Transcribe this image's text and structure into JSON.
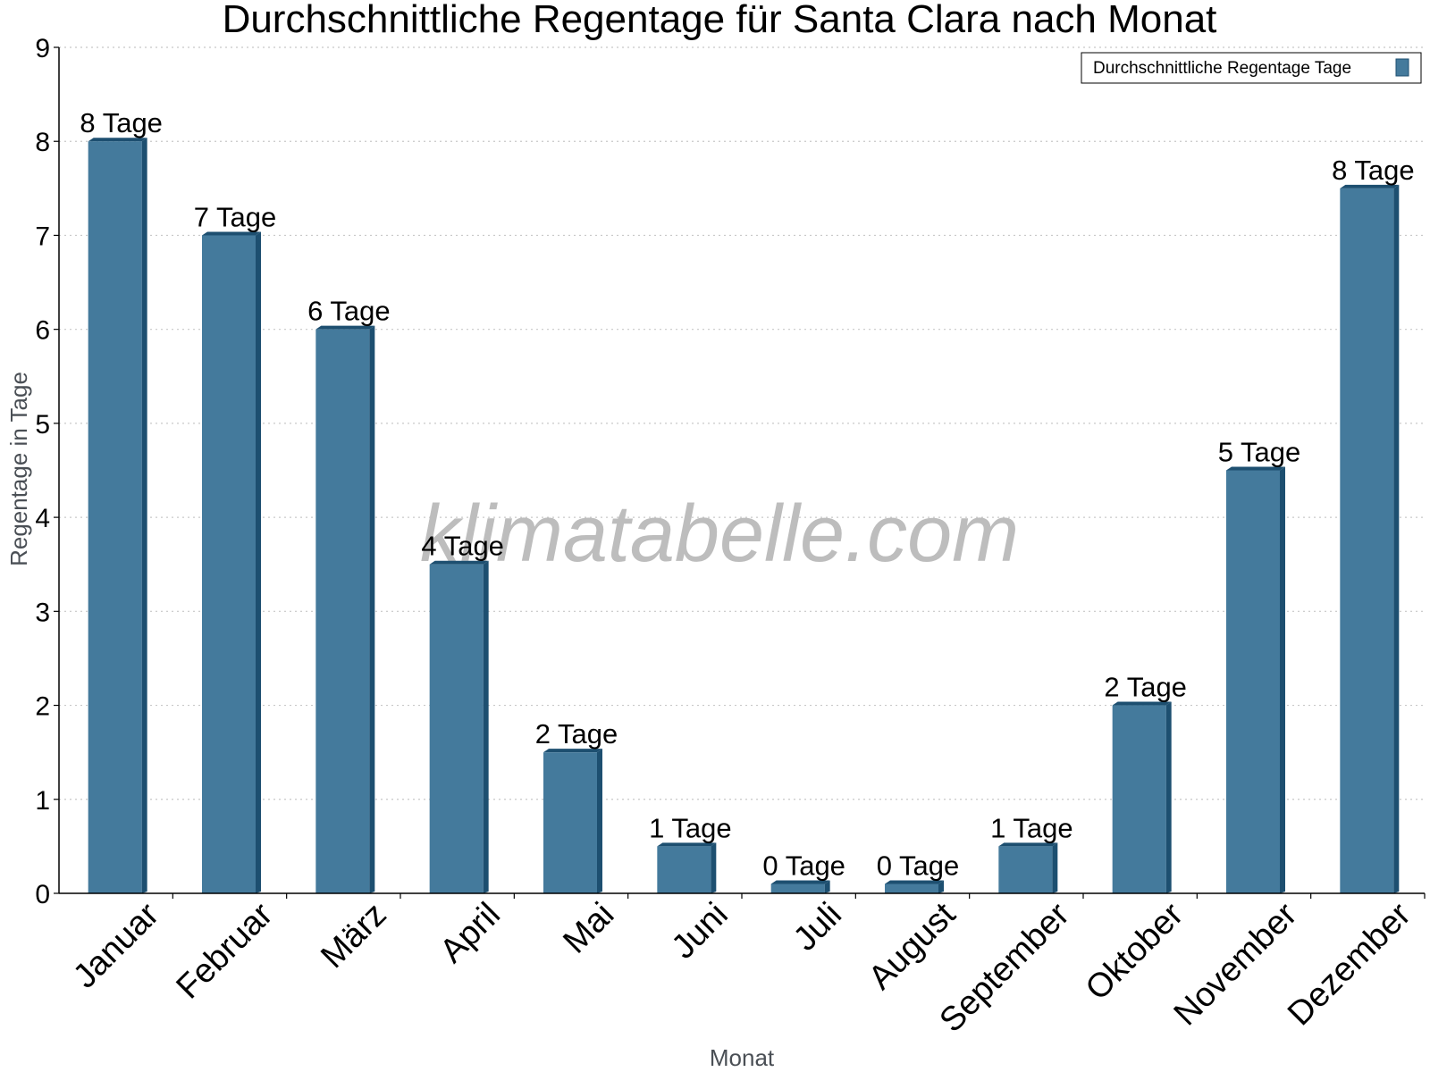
{
  "chart_data": {
    "type": "bar",
    "title": "Durchschnittliche Regentage für Santa Clara nach Monat",
    "xlabel": "Monat",
    "ylabel": "Regentage in Tage",
    "ylim": [
      0,
      9
    ],
    "yticks": [
      "0",
      "1",
      "2",
      "3",
      "4",
      "5",
      "6",
      "7",
      "8",
      "9"
    ],
    "grid": true,
    "legend_position": "top-right",
    "categories": [
      "Januar",
      "Februar",
      "März",
      "April",
      "Mai",
      "Juni",
      "Juli",
      "August",
      "September",
      "Oktober",
      "November",
      "Dezember"
    ],
    "series": [
      {
        "name": "Durchschnittliche Regentage Tage",
        "values": [
          8,
          7,
          6,
          3.5,
          1.5,
          0.5,
          0.1,
          0.1,
          0.5,
          2,
          4.5,
          7.5
        ],
        "labels": [
          "8 Tage",
          "7 Tage",
          "6 Tage",
          "4 Tage",
          "2 Tage",
          "1 Tage",
          "0 Tage",
          "0 Tage",
          "1 Tage",
          "2 Tage",
          "5 Tage",
          "8 Tage"
        ],
        "color": "#447a9c",
        "side_color": "#1d4f70"
      }
    ],
    "watermark": "klimatabelle.com"
  }
}
